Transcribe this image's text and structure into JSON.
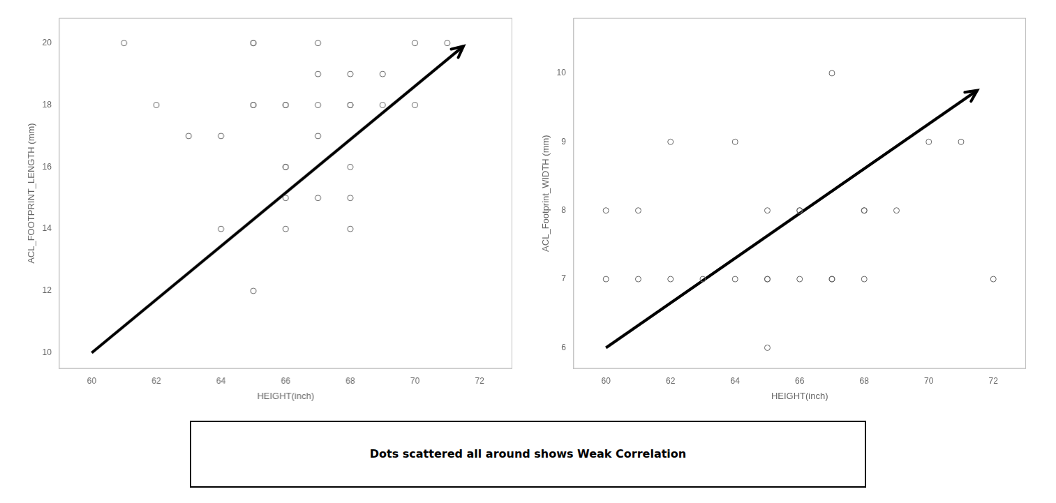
{
  "chart_data": [
    {
      "type": "scatter",
      "xlabel": "HEIGHT(inch)",
      "ylabel": "ACL_FOOTPRINT_LENGTH (mm)",
      "xlim": [
        59.0,
        73.0
      ],
      "ylim": [
        9.5,
        20.8
      ],
      "xticks": [
        60,
        62,
        64,
        66,
        68,
        70,
        72
      ],
      "yticks": [
        10,
        12,
        14,
        16,
        18,
        20
      ],
      "grid": false,
      "legend": false,
      "series": [
        {
          "type": "scatter",
          "marker": "open_circle",
          "color": "#666666",
          "x": [
            61,
            62,
            63,
            64,
            64,
            65,
            65,
            65,
            65,
            65,
            66,
            66,
            66,
            66,
            66,
            66,
            67,
            67,
            67,
            67,
            67,
            68,
            68,
            68,
            68,
            68,
            68,
            69,
            69,
            70,
            70,
            71
          ],
          "values": [
            20,
            18,
            17,
            17,
            14,
            18,
            18,
            20,
            20,
            12,
            16,
            18,
            18,
            15,
            16,
            14,
            17,
            15,
            18,
            20,
            19,
            19,
            18,
            18,
            16,
            15,
            14,
            18,
            19,
            20,
            18,
            20
          ]
        },
        {
          "type": "line",
          "line_style": "arrow",
          "color": "black",
          "x": [
            60.0,
            71.5
          ],
          "values": [
            10.0,
            19.9
          ]
        }
      ]
    },
    {
      "type": "scatter",
      "xlabel": "HEIGHT(inch)",
      "ylabel": "ACL_Footprint_WIDTH (mm)",
      "xlim": [
        59.0,
        73.0
      ],
      "ylim": [
        5.7,
        10.8
      ],
      "xticks": [
        60,
        62,
        64,
        66,
        68,
        70,
        72
      ],
      "yticks": [
        6,
        7,
        8,
        9,
        10
      ],
      "grid": false,
      "legend": false,
      "series": [
        {
          "type": "scatter",
          "marker": "open_circle",
          "color": "#666666",
          "x": [
            60,
            60,
            61,
            61,
            62,
            62,
            63,
            64,
            64,
            65,
            65,
            65,
            65,
            66,
            66,
            66,
            67,
            67,
            67,
            68,
            68,
            68,
            69,
            70,
            71,
            72
          ],
          "values": [
            8,
            7,
            8,
            7,
            9,
            7,
            7,
            9,
            7,
            8,
            7,
            7,
            6,
            8,
            8,
            7,
            7,
            7,
            10,
            8,
            8,
            7,
            8,
            9,
            9,
            7
          ]
        },
        {
          "type": "line",
          "line_style": "arrow",
          "color": "black",
          "x": [
            60.0,
            71.5
          ],
          "values": [
            6.0,
            9.75
          ]
        }
      ]
    }
  ],
  "annotation": "Dots scattered all around shows Weak Correlation"
}
